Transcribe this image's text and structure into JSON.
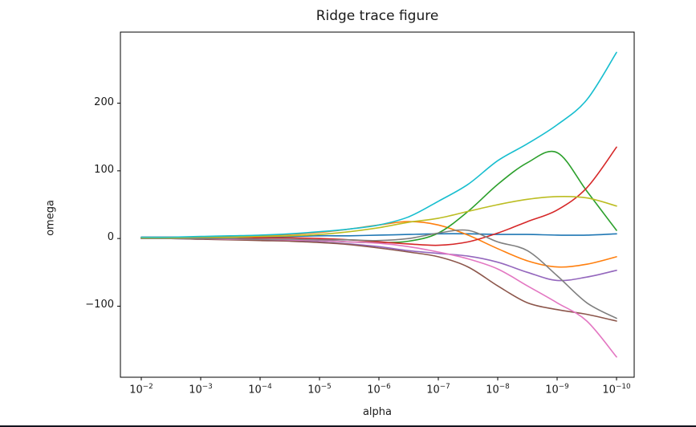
{
  "chart_data": {
    "type": "line",
    "title": "Ridge trace figure",
    "xlabel": "alpha",
    "ylabel": "omega",
    "x_scale": "log-reversed",
    "x_tick_exponents": [
      -2,
      -3,
      -4,
      -5,
      -6,
      -7,
      -8,
      -9,
      -10
    ],
    "yticks": [
      -100,
      0,
      100,
      200
    ],
    "ylim": [
      -205,
      305
    ],
    "grid": false,
    "legend": "none",
    "x": [
      -2,
      -2.5,
      -3,
      -3.5,
      -4,
      -4.5,
      -5,
      -5.5,
      -6,
      -6.5,
      -7,
      -7.5,
      -8,
      -8.5,
      -9,
      -9.5,
      -10
    ],
    "series": [
      {
        "name": "blue",
        "color": "#1f77b4",
        "values": [
          2,
          2,
          2,
          3,
          3,
          3,
          4,
          4,
          5,
          6,
          7,
          7,
          6,
          6,
          5,
          5,
          7
        ]
      },
      {
        "name": "orange",
        "color": "#ff7f0e",
        "values": [
          1,
          1,
          2,
          3,
          4,
          6,
          9,
          14,
          20,
          25,
          20,
          5,
          -15,
          -33,
          -42,
          -38,
          -27
        ]
      },
      {
        "name": "green",
        "color": "#2ca02c",
        "values": [
          1,
          1,
          1,
          0,
          -1,
          -2,
          -3,
          -5,
          -6,
          -4,
          8,
          40,
          80,
          112,
          127,
          70,
          12
        ]
      },
      {
        "name": "red",
        "color": "#d62728",
        "values": [
          2,
          2,
          2,
          2,
          1,
          1,
          0,
          -2,
          -5,
          -8,
          -10,
          -5,
          8,
          25,
          42,
          75,
          135
        ]
      },
      {
        "name": "purple",
        "color": "#9467bd",
        "values": [
          0,
          0,
          -1,
          -1,
          -2,
          -3,
          -5,
          -8,
          -12,
          -18,
          -22,
          -26,
          -35,
          -50,
          -62,
          -57,
          -47
        ]
      },
      {
        "name": "brown",
        "color": "#8c564b",
        "values": [
          0,
          0,
          -1,
          -2,
          -3,
          -4,
          -6,
          -9,
          -14,
          -20,
          -27,
          -42,
          -70,
          -95,
          -105,
          -112,
          -122
        ]
      },
      {
        "name": "pink",
        "color": "#e377c2",
        "values": [
          1,
          0,
          0,
          -1,
          -1,
          -2,
          -3,
          -5,
          -7,
          -12,
          -20,
          -30,
          -45,
          -70,
          -95,
          -122,
          -175
        ]
      },
      {
        "name": "gray",
        "color": "#7f7f7f",
        "values": [
          0,
          0,
          0,
          0,
          -1,
          -1,
          -2,
          -2,
          -3,
          0,
          8,
          12,
          -5,
          -18,
          -55,
          -95,
          -118
        ]
      },
      {
        "name": "olive",
        "color": "#bcbd22",
        "values": [
          1,
          1,
          2,
          2,
          3,
          4,
          6,
          10,
          16,
          24,
          30,
          40,
          50,
          58,
          62,
          60,
          48
        ]
      },
      {
        "name": "cyan",
        "color": "#17becf",
        "values": [
          2,
          2,
          3,
          4,
          5,
          7,
          10,
          14,
          20,
          32,
          55,
          80,
          115,
          140,
          168,
          205,
          275
        ]
      }
    ],
    "axis_color": "#000000"
  }
}
